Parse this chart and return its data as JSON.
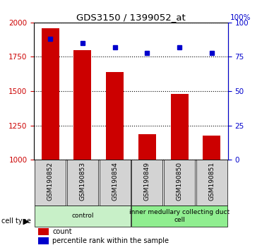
{
  "title": "GDS3150 / 1399052_at",
  "samples": [
    "GSM190852",
    "GSM190853",
    "GSM190854",
    "GSM190849",
    "GSM190850",
    "GSM190851"
  ],
  "counts": [
    1960,
    1800,
    1640,
    1185,
    1480,
    1175
  ],
  "percentile_ranks": [
    88,
    85,
    82,
    78,
    82,
    78
  ],
  "ylim_left": [
    1000,
    2000
  ],
  "ylim_right": [
    0,
    100
  ],
  "yticks_left": [
    1000,
    1250,
    1500,
    1750,
    2000
  ],
  "yticks_right": [
    0,
    25,
    50,
    75,
    100
  ],
  "cell_types": [
    {
      "label": "control",
      "indices": [
        0,
        1,
        2
      ],
      "color": "#c8f0c8"
    },
    {
      "label": "inner medullary collecting duct\ncell",
      "indices": [
        3,
        4,
        5
      ],
      "color": "#90ee90"
    }
  ],
  "bar_color": "#cc0000",
  "percentile_color": "#0000cc",
  "grid_color": "#000000",
  "bg_color": "#ffffff",
  "left_axis_color": "#cc0000",
  "right_axis_color": "#0000cc",
  "legend_count_label": "count",
  "legend_percentile_label": "percentile rank within the sample",
  "cell_type_label": "cell type",
  "xlabel_area_bg": "#d3d3d3",
  "bar_width": 0.55
}
